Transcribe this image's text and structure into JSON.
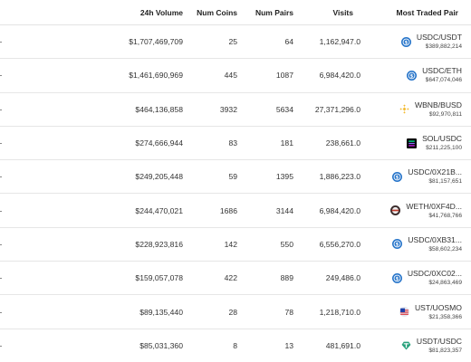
{
  "header": {
    "volume": "24h Volume",
    "coins": "Num Coins",
    "pairs": "Num Pairs",
    "visits": "Visits",
    "pair": "Most Traded Pair"
  },
  "rows": [
    {
      "volume": "$1,707,469,709",
      "coins": "25",
      "pairs": "64",
      "visits": "1,162,947.0",
      "pair": "USDC/USDT",
      "pair_volume": "$389,882,214",
      "icon": "usdc-icon"
    },
    {
      "volume": "$1,461,690,969",
      "coins": "445",
      "pairs": "1087",
      "visits": "6,984,420.0",
      "pair": "USDC/ETH",
      "pair_volume": "$647,074,046",
      "icon": "usdc-icon"
    },
    {
      "volume": "$464,136,858",
      "coins": "3932",
      "pairs": "5634",
      "visits": "27,371,296.0",
      "pair": "WBNB/BUSD",
      "pair_volume": "$92,970,811",
      "icon": "bnb-icon"
    },
    {
      "volume": "$274,666,944",
      "coins": "83",
      "pairs": "181",
      "visits": "238,661.0",
      "pair": "SOL/USDC",
      "pair_volume": "$211,225,100",
      "icon": "solana-icon"
    },
    {
      "volume": "$249,205,448",
      "coins": "59",
      "pairs": "1395",
      "visits": "1,886,223.0",
      "pair": "USDC/0X21B...",
      "pair_volume": "$81,157,651",
      "icon": "usdc-icon"
    },
    {
      "volume": "$244,470,021",
      "coins": "1686",
      "pairs": "3144",
      "visits": "6,984,420.0",
      "pair": "WETH/0XF4D...",
      "pair_volume": "$41,768,766",
      "icon": "weth-icon"
    },
    {
      "volume": "$228,923,816",
      "coins": "142",
      "pairs": "550",
      "visits": "6,556,270.0",
      "pair": "USDC/0XB31...",
      "pair_volume": "$58,602,234",
      "icon": "usdc-icon"
    },
    {
      "volume": "$159,057,078",
      "coins": "422",
      "pairs": "889",
      "visits": "249,486.0",
      "pair": "USDC/0XC02...",
      "pair_volume": "$24,863,469",
      "icon": "usdc-icon"
    },
    {
      "volume": "$89,135,440",
      "coins": "28",
      "pairs": "78",
      "visits": "1,218,710.0",
      "pair": "UST/UOSMO",
      "pair_volume": "$21,358,366",
      "icon": "ust-icon"
    },
    {
      "volume": "$85,031,360",
      "coins": "8",
      "pairs": "13",
      "visits": "481,691.0",
      "pair": "USDT/USDC",
      "pair_volume": "$81,823,357",
      "icon": "tether-icon"
    }
  ]
}
